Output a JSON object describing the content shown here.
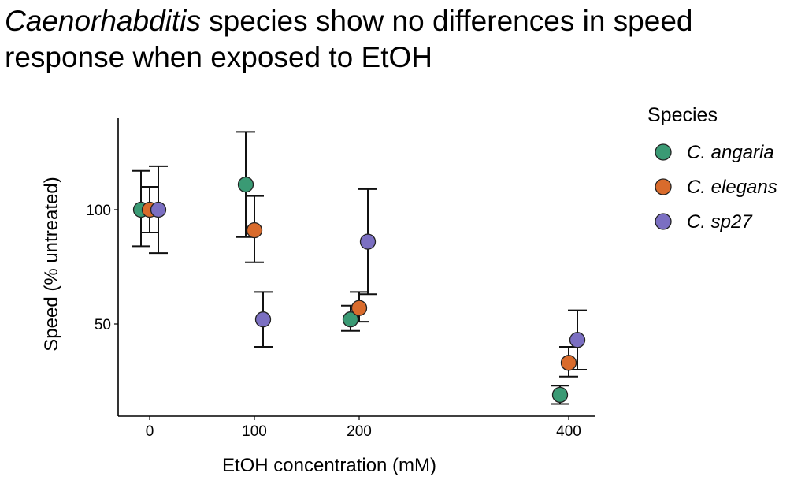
{
  "title": {
    "italic_part": "Caenorhabditis",
    "rest": " species show no differences in speed response when exposed to EtOH"
  },
  "chart_data": {
    "type": "scatter",
    "title": "Caenorhabditis species show no differences in speed response when exposed to EtOH",
    "xlabel": "EtOH concentration (mM)",
    "ylabel": "Speed (% untreated)",
    "x_categories": [
      "0",
      "100",
      "200",
      "400"
    ],
    "y_ticks": [
      50,
      100
    ],
    "ylim": [
      12,
      142
    ],
    "grid": false,
    "legend": {
      "title": "Species",
      "position": "right"
    },
    "series": [
      {
        "name": "C. angaria",
        "color": "#3a9a74",
        "points": [
          {
            "x": "0",
            "y": 100,
            "ymin": 84,
            "ymax": 117
          },
          {
            "x": "100",
            "y": 111,
            "ymin": 88,
            "ymax": 134
          },
          {
            "x": "200",
            "y": 52,
            "ymin": 47,
            "ymax": 58
          },
          {
            "x": "400",
            "y": 19,
            "ymin": 15,
            "ymax": 23
          }
        ]
      },
      {
        "name": "C. elegans",
        "color": "#d96b2c",
        "points": [
          {
            "x": "0",
            "y": 100,
            "ymin": 90,
            "ymax": 110
          },
          {
            "x": "100",
            "y": 91,
            "ymin": 77,
            "ymax": 106
          },
          {
            "x": "200",
            "y": 57,
            "ymin": 51,
            "ymax": 64
          },
          {
            "x": "400",
            "y": 33,
            "ymin": 27,
            "ymax": 40
          }
        ]
      },
      {
        "name": "C. sp27",
        "color": "#7b6fc2",
        "points": [
          {
            "x": "0",
            "y": 100,
            "ymin": 81,
            "ymax": 119
          },
          {
            "x": "100",
            "y": 52,
            "ymin": 40,
            "ymax": 64
          },
          {
            "x": "200",
            "y": 86,
            "ymin": 63,
            "ymax": 109
          },
          {
            "x": "400",
            "y": 43,
            "ymin": 30,
            "ymax": 56
          }
        ]
      }
    ]
  }
}
